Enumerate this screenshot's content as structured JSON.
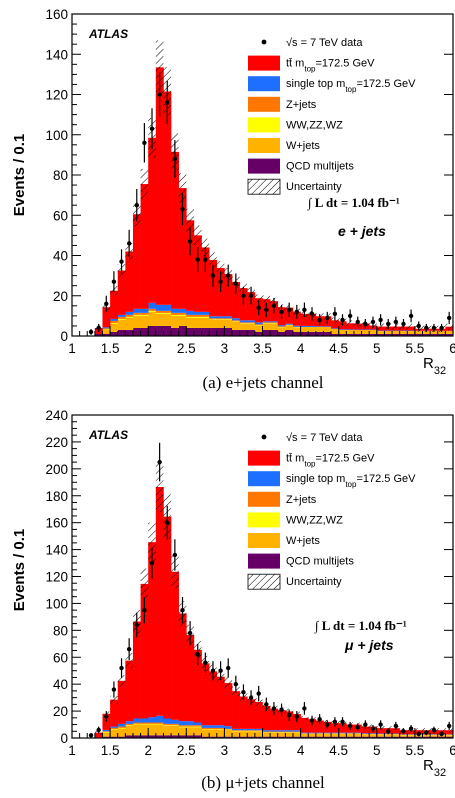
{
  "chart_data": [
    {
      "type": "bar",
      "panel": "a",
      "caption": "(a) e+jets channel",
      "ylabel": "Events / 0.1",
      "xlabel": "R32",
      "ylim": [
        0,
        160
      ],
      "xlim": [
        1,
        6
      ],
      "yticks": [
        0,
        20,
        40,
        60,
        80,
        100,
        120,
        140,
        160
      ],
      "xticks": [
        1,
        1.5,
        2,
        2.5,
        3,
        3.5,
        4,
        4.5,
        5,
        5.5,
        6
      ],
      "atlas_label": "ATLAS",
      "lumi_label": "∫ L dt = 1.04 fb⁻¹",
      "channel_label": "e + jets",
      "bin_edges_start": 1.0,
      "bin_width": 0.1,
      "series": [
        {
          "name": "tt̄ m_top=172.5 GeV",
          "color": "#ff0000",
          "values": [
            0,
            0,
            0,
            3,
            10,
            14,
            22,
            30,
            47,
            62,
            82,
            118,
            106,
            78,
            60,
            45,
            38,
            32,
            28,
            24,
            21,
            18,
            16,
            14,
            12,
            11,
            10,
            9,
            8,
            7,
            6,
            6,
            5,
            5,
            4,
            4,
            3,
            3,
            3,
            2,
            2,
            2,
            2,
            2,
            2,
            1,
            1,
            1,
            1,
            2
          ]
        },
        {
          "name": "single top m_top=172.5 GeV",
          "color": "#1e6fff",
          "values": [
            0,
            0,
            0,
            0,
            0.5,
            1,
            1,
            1.5,
            2,
            2,
            3,
            3,
            3,
            2,
            2,
            2,
            1.5,
            1.5,
            1,
            1,
            1,
            1,
            1,
            1,
            1,
            0.5,
            0.5,
            0.5,
            0.5,
            0.5,
            0.5,
            0.5,
            0.3,
            0.3,
            0.3,
            0.3,
            0.3,
            0.2,
            0.2,
            0.2,
            0.2,
            0.2,
            0.2,
            0.2,
            0.2,
            0.1,
            0.1,
            0.1,
            0.1,
            0.1
          ]
        },
        {
          "name": "Z+jets",
          "color": "#ff7700",
          "values": [
            0,
            0,
            0,
            0,
            0.5,
            1,
            1,
            1,
            1,
            1,
            1,
            1,
            1,
            1,
            1,
            1,
            1,
            1,
            0.5,
            0.5,
            0.5,
            0.5,
            0.5,
            0.5,
            0.5,
            0.5,
            0.5,
            0.5,
            0.3,
            0.3,
            0.3,
            0.3,
            0.3,
            0.3,
            0.3,
            0.3,
            0.3,
            0.3,
            0.3,
            0.3,
            0.3,
            0.3,
            0.3,
            0.3,
            0.3,
            0.3,
            0.3,
            0.3,
            0.3,
            0.3
          ]
        },
        {
          "name": "WW,ZZ,WZ",
          "color": "#ffff00",
          "values": [
            0,
            0,
            0,
            0,
            0.3,
            0.5,
            0.5,
            0.5,
            0.5,
            0.5,
            0.5,
            0.5,
            0.5,
            0.5,
            0.5,
            0.5,
            0.5,
            0.5,
            0.3,
            0.3,
            0.3,
            0.3,
            0.3,
            0.3,
            0.3,
            0.3,
            0.3,
            0.3,
            0.3,
            0.3,
            0.2,
            0.2,
            0.2,
            0.2,
            0.2,
            0.2,
            0.2,
            0.2,
            0.2,
            0.2,
            0.2,
            0.2,
            0.2,
            0.2,
            0.2,
            0.2,
            0.2,
            0.2,
            0.2,
            0.2
          ]
        },
        {
          "name": "W+jets",
          "color": "#ffb300",
          "values": [
            0,
            0,
            0,
            0,
            2,
            4,
            5,
            6,
            6,
            6,
            7,
            6,
            6,
            6,
            5,
            5,
            5,
            5,
            4,
            4,
            4,
            4,
            3,
            3,
            3,
            3,
            3,
            2,
            2,
            2,
            2,
            2,
            2,
            2,
            2,
            1.5,
            1.5,
            1.5,
            1.5,
            1.5,
            1,
            1,
            1,
            1,
            1,
            1,
            1,
            1,
            1,
            1
          ]
        },
        {
          "name": "QCD multijets",
          "color": "#660066",
          "values": [
            0,
            0,
            0,
            1,
            1,
            2,
            3,
            3,
            4,
            4,
            5,
            5,
            5,
            4,
            5,
            4,
            4,
            4,
            4,
            4,
            4,
            3,
            3,
            3,
            2,
            3,
            3,
            2,
            3,
            2,
            2,
            2,
            2,
            2,
            1,
            1,
            1,
            1,
            1,
            1,
            1,
            1,
            1,
            1,
            1,
            1,
            1,
            1,
            1,
            1
          ]
        }
      ],
      "data_points": {
        "name": "√s = 7 TeV data",
        "values": [
          0,
          0,
          2,
          4,
          16,
          27,
          37,
          46,
          65,
          96,
          103,
          120,
          116,
          88,
          63,
          47,
          38,
          38,
          30,
          27,
          30,
          26,
          20,
          20,
          14,
          13,
          15,
          12,
          13,
          12,
          13,
          11,
          8,
          9,
          11,
          8,
          10,
          7,
          6,
          7,
          8,
          6,
          7,
          6,
          10,
          5,
          4,
          4,
          4,
          9
        ]
      }
    },
    {
      "type": "bar",
      "panel": "b",
      "caption": "(b) μ+jets channel",
      "ylabel": "Events / 0.1",
      "xlabel": "R32",
      "ylim": [
        0,
        240
      ],
      "xlim": [
        1,
        6
      ],
      "yticks": [
        0,
        20,
        40,
        60,
        80,
        100,
        120,
        140,
        160,
        180,
        200,
        220,
        240
      ],
      "xticks": [
        1,
        1.5,
        2,
        2.5,
        3,
        3.5,
        4,
        4.5,
        5,
        5.5,
        6
      ],
      "atlas_label": "ATLAS",
      "lumi_label": "∫ L dt = 1.04 fb⁻¹",
      "channel_label": "μ + jets",
      "bin_edges_start": 1.0,
      "bin_width": 0.1,
      "series": [
        {
          "name": "tt̄ m_top=172.5 GeV",
          "color": "#ff0000",
          "values": [
            0,
            0,
            0,
            4,
            12,
            20,
            32,
            45,
            72,
            100,
            130,
            170,
            150,
            110,
            80,
            64,
            54,
            46,
            40,
            36,
            32,
            28,
            24,
            22,
            20,
            18,
            16,
            15,
            14,
            12,
            11,
            10,
            9,
            8,
            7,
            7,
            6,
            6,
            5,
            5,
            4,
            4,
            4,
            3,
            3,
            3,
            3,
            3,
            3,
            3
          ]
        },
        {
          "name": "single top m_top=172.5 GeV",
          "color": "#1e6fff",
          "values": [
            0,
            0,
            0,
            0,
            1,
            1,
            2,
            2,
            3,
            3,
            4,
            5,
            4,
            3,
            3,
            3,
            2,
            2,
            2,
            2,
            2,
            1,
            1,
            1,
            1,
            1,
            1,
            1,
            1,
            1,
            0.5,
            0.5,
            0.5,
            0.5,
            0.5,
            0.5,
            0.5,
            0.5,
            0.5,
            0.5,
            0.3,
            0.3,
            0.3,
            0.3,
            0.3,
            0.3,
            0.3,
            0.3,
            0.3,
            0.3
          ]
        },
        {
          "name": "Z+jets",
          "color": "#ff7700",
          "values": [
            0,
            0,
            0,
            0,
            0.5,
            1,
            1,
            1,
            1,
            1,
            1,
            1,
            1,
            1,
            1,
            1,
            1,
            1,
            1,
            1,
            0.5,
            0.5,
            0.5,
            0.5,
            0.5,
            0.5,
            0.5,
            0.5,
            0.5,
            0.5,
            0.3,
            0.3,
            0.3,
            0.3,
            0.3,
            0.3,
            0.3,
            0.3,
            0.3,
            0.3,
            0.3,
            0.3,
            0.3,
            0.3,
            0.3,
            0.3,
            0.3,
            0.3,
            0.3,
            0.3
          ]
        },
        {
          "name": "WW,ZZ,WZ",
          "color": "#ffff00",
          "values": [
            0,
            0,
            0,
            0,
            0.5,
            0.5,
            0.5,
            0.5,
            0.5,
            0.5,
            0.5,
            0.5,
            0.5,
            0.5,
            0.5,
            0.5,
            0.5,
            0.5,
            0.5,
            0.5,
            0.3,
            0.3,
            0.3,
            0.3,
            0.3,
            0.3,
            0.3,
            0.3,
            0.3,
            0.3,
            0.2,
            0.2,
            0.2,
            0.2,
            0.2,
            0.2,
            0.2,
            0.2,
            0.2,
            0.2,
            0.2,
            0.2,
            0.2,
            0.2,
            0.2,
            0.2,
            0.2,
            0.2,
            0.2,
            0.2
          ]
        },
        {
          "name": "W+jets",
          "color": "#ffb300",
          "values": [
            0,
            0,
            0,
            0,
            3,
            5,
            6,
            7,
            8,
            8,
            8,
            8,
            7,
            7,
            6,
            6,
            6,
            5,
            5,
            5,
            5,
            4,
            4,
            4,
            4,
            3,
            3,
            3,
            3,
            3,
            2,
            2,
            2,
            2,
            2,
            2,
            2,
            2,
            1.5,
            1.5,
            1.5,
            1.5,
            1.5,
            1,
            1,
            1,
            1,
            1,
            1,
            1
          ]
        },
        {
          "name": "QCD multijets",
          "color": "#660066",
          "values": [
            0,
            0,
            0,
            0,
            1,
            1,
            1,
            2,
            2,
            2,
            2,
            2,
            2,
            2,
            2,
            2,
            2,
            1,
            1,
            1,
            1,
            1,
            1,
            1,
            1,
            1,
            1,
            1,
            1,
            1,
            1,
            1,
            1,
            1,
            1,
            1,
            1,
            1,
            1,
            1,
            1,
            1,
            1,
            1,
            1,
            1,
            1,
            1,
            1,
            1
          ]
        }
      ],
      "data_points": {
        "name": "√s = 7 TeV data",
        "values": [
          0,
          0,
          2,
          6,
          16,
          36,
          52,
          66,
          84,
          95,
          130,
          205,
          160,
          136,
          95,
          78,
          62,
          56,
          50,
          50,
          52,
          40,
          34,
          30,
          33,
          25,
          22,
          21,
          17,
          16,
          22,
          13,
          14,
          10,
          12,
          12,
          9,
          8,
          10,
          7,
          10,
          5,
          9,
          5,
          7,
          3,
          4,
          6,
          3,
          9
        ]
      }
    }
  ],
  "legend": {
    "data": "√s = 7 TeV data",
    "ttbar": "tt̄ m",
    "ttbar_sub": "top",
    "ttbar_rest": "=172.5 GeV",
    "single_top": "single top m",
    "single_top_sub": "top",
    "single_top_rest": "=172.5 GeV",
    "zjets": "Z+jets",
    "diboson": "WW,ZZ,WZ",
    "wjets": "W+jets",
    "qcd": "QCD multijets",
    "uncertainty": "Uncertainty"
  },
  "colors": {
    "ttbar": "#ff0000",
    "single_top": "#1e6fff",
    "zjets": "#ff7700",
    "diboson": "#ffff00",
    "wjets": "#ffb300",
    "qcd": "#660066"
  }
}
